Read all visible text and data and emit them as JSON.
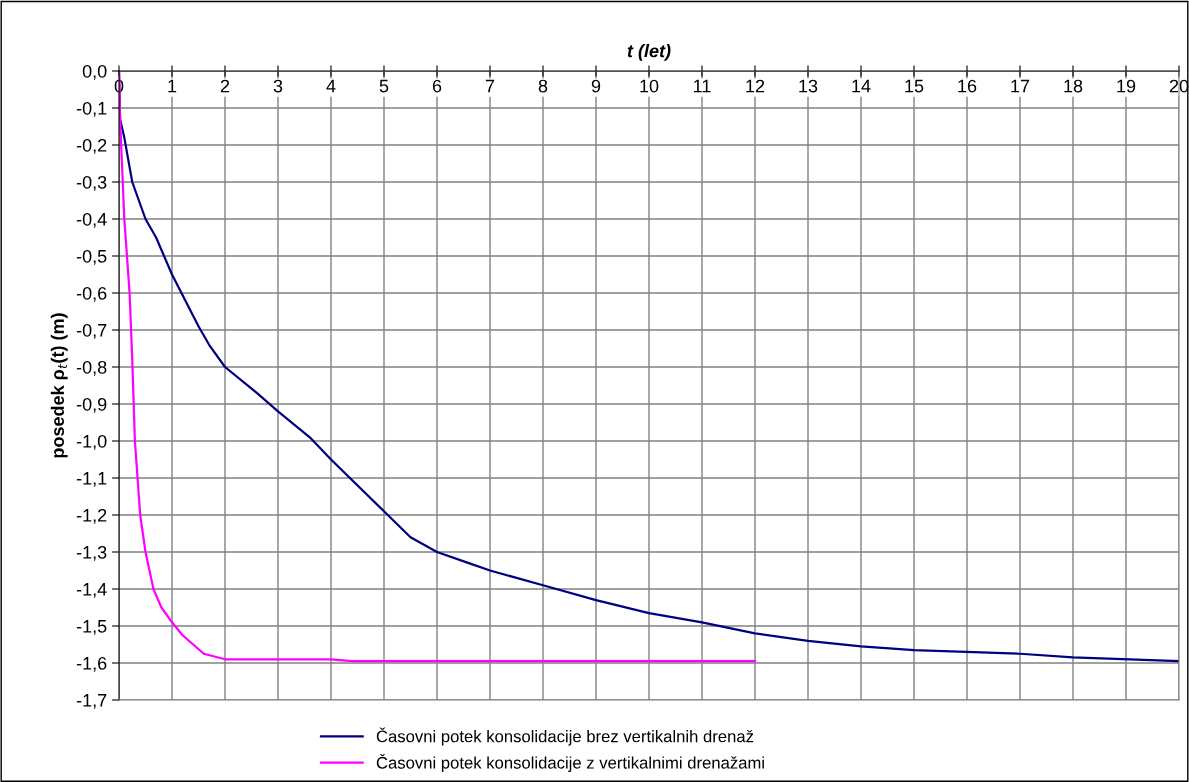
{
  "chart_data": {
    "type": "line",
    "xlabel": "t (let)",
    "ylabel": "posedek ρ$_{t}$(t) (m)",
    "xlim": [
      0,
      20
    ],
    "xticks": [
      0,
      1,
      2,
      3,
      4,
      5,
      6,
      7,
      8,
      9,
      10,
      11,
      12,
      13,
      14,
      15,
      16,
      17,
      18,
      19,
      20
    ],
    "ylim": [
      -1.7,
      0
    ],
    "yticks": [
      {
        "value": 0,
        "label": "0,0"
      },
      {
        "value": -0.1,
        "label": "-0,1"
      },
      {
        "value": -0.2,
        "label": "-0,2"
      },
      {
        "value": -0.3,
        "label": "-0,3"
      },
      {
        "value": -0.4,
        "label": "-0,4"
      },
      {
        "value": -0.5,
        "label": "-0,5"
      },
      {
        "value": -0.6,
        "label": "-0,6"
      },
      {
        "value": -0.7,
        "label": "-0,7"
      },
      {
        "value": -0.8,
        "label": "-0,8"
      },
      {
        "value": -0.9,
        "label": "-0,9"
      },
      {
        "value": -1.0,
        "label": "-1,0"
      },
      {
        "value": -1.1,
        "label": "-1,1"
      },
      {
        "value": -1.2,
        "label": "-1,2"
      },
      {
        "value": -1.3,
        "label": "-1,3"
      },
      {
        "value": -1.4,
        "label": "-1,4"
      },
      {
        "value": -1.5,
        "label": "-1,5"
      },
      {
        "value": -1.6,
        "label": "-1,6"
      },
      {
        "value": -1.7,
        "label": "-1,7"
      }
    ],
    "grid": true,
    "legend": "bottom",
    "marker": "none",
    "line_style": "solid",
    "series": [
      {
        "name": "Časovni potek konsolidacije brez vertikalnih drenaž",
        "color": "#000080",
        "x": [
          0,
          0.02,
          0.1,
          0.25,
          0.5,
          0.7,
          1,
          1.5,
          1.7,
          2,
          2.6,
          3,
          3.6,
          4,
          5,
          5.5,
          6,
          6.6,
          7,
          8,
          9,
          10,
          11,
          12,
          13,
          14,
          15,
          17,
          18,
          20
        ],
        "values": [
          0,
          -0.13,
          -0.18,
          -0.3,
          -0.4,
          -0.45,
          -0.55,
          -0.69,
          -0.74,
          -0.8,
          -0.87,
          -0.92,
          -0.99,
          -1.05,
          -1.19,
          -1.26,
          -1.3,
          -1.33,
          -1.35,
          -1.39,
          -1.43,
          -1.465,
          -1.49,
          -1.52,
          -1.54,
          -1.555,
          -1.565,
          -1.575,
          -1.585,
          -1.595
        ]
      },
      {
        "name": "Časovni potek konsolidacije z vertikalnimi drenažami",
        "color": "#ff00ff",
        "x": [
          0,
          0.02,
          0.1,
          0.2,
          0.25,
          0.3,
          0.4,
          0.5,
          0.65,
          0.8,
          1,
          1.2,
          1.6,
          2,
          4,
          4.4,
          12
        ],
        "values": [
          0,
          -0.13,
          -0.4,
          -0.6,
          -0.78,
          -1.0,
          -1.2,
          -1.3,
          -1.4,
          -1.45,
          -1.49,
          -1.525,
          -1.575,
          -1.59,
          -1.59,
          -1.595,
          -1.595
        ]
      }
    ]
  }
}
